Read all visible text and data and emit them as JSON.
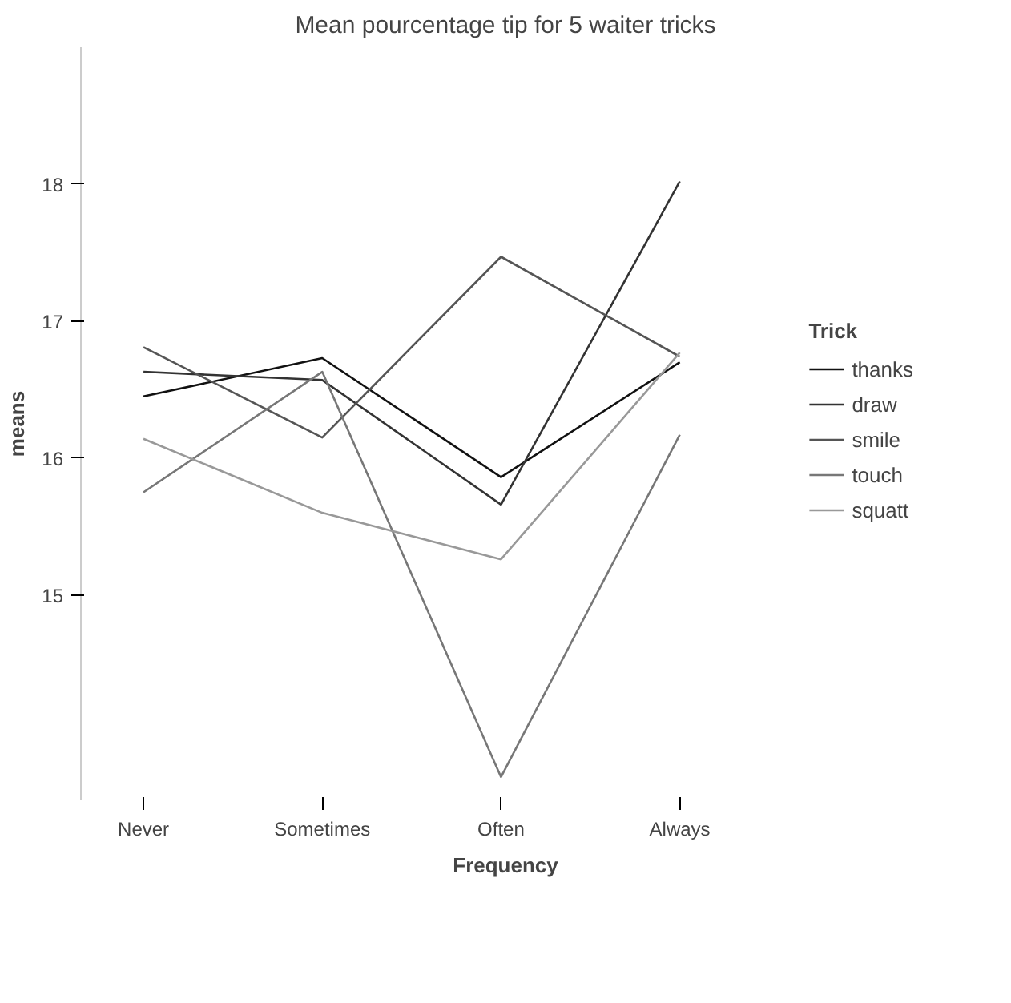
{
  "chart_data": {
    "type": "line",
    "title": "Mean pourcentage tip for 5 waiter tricks",
    "xlabel": "Frequency",
    "ylabel": "means",
    "legend_title": "Trick",
    "categories": [
      "Never",
      "Sometimes",
      "Often",
      "Always"
    ],
    "series": [
      {
        "name": "thanks",
        "color": "#111111",
        "values": [
          16.45,
          16.73,
          15.86,
          16.7
        ]
      },
      {
        "name": "draw",
        "color": "#333333",
        "values": [
          16.63,
          16.57,
          15.66,
          18.02
        ]
      },
      {
        "name": "smile",
        "color": "#555555",
        "values": [
          16.81,
          16.15,
          17.47,
          16.74
        ]
      },
      {
        "name": "touch",
        "color": "#777777",
        "values": [
          15.75,
          16.63,
          13.67,
          16.17
        ]
      },
      {
        "name": "squatt",
        "color": "#999999",
        "values": [
          16.14,
          15.6,
          15.26,
          16.77
        ]
      }
    ],
    "ylim": [
      13.5,
      19.0
    ],
    "yticks": [
      15,
      16,
      17,
      18
    ],
    "grid": false,
    "legend": "right",
    "marker": "none",
    "line_style": "solid"
  }
}
